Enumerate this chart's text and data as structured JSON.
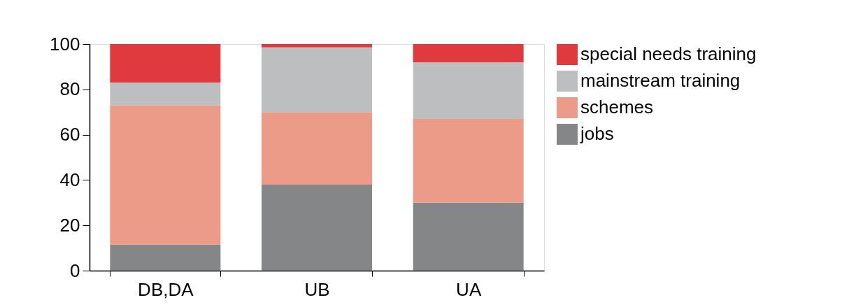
{
  "chart_data": {
    "type": "bar",
    "stacked": true,
    "categories": [
      "DB,DA",
      "UB",
      "UA"
    ],
    "series": [
      {
        "name": "jobs",
        "color": "#858688",
        "values": [
          11.5,
          38,
          30
        ]
      },
      {
        "name": "schemes",
        "color": "#ed9b89",
        "values": [
          61.5,
          32,
          37
        ]
      },
      {
        "name": "mainstream training",
        "color": "#bdbec0",
        "values": [
          10,
          28.5,
          25
        ]
      },
      {
        "name": "special needs training",
        "color": "#e03a3e",
        "values": [
          17,
          1.5,
          8
        ]
      }
    ],
    "ylim": [
      0,
      100
    ],
    "yticks": [
      0,
      20,
      40,
      60,
      80,
      100
    ],
    "grid": false,
    "legend": "right"
  }
}
